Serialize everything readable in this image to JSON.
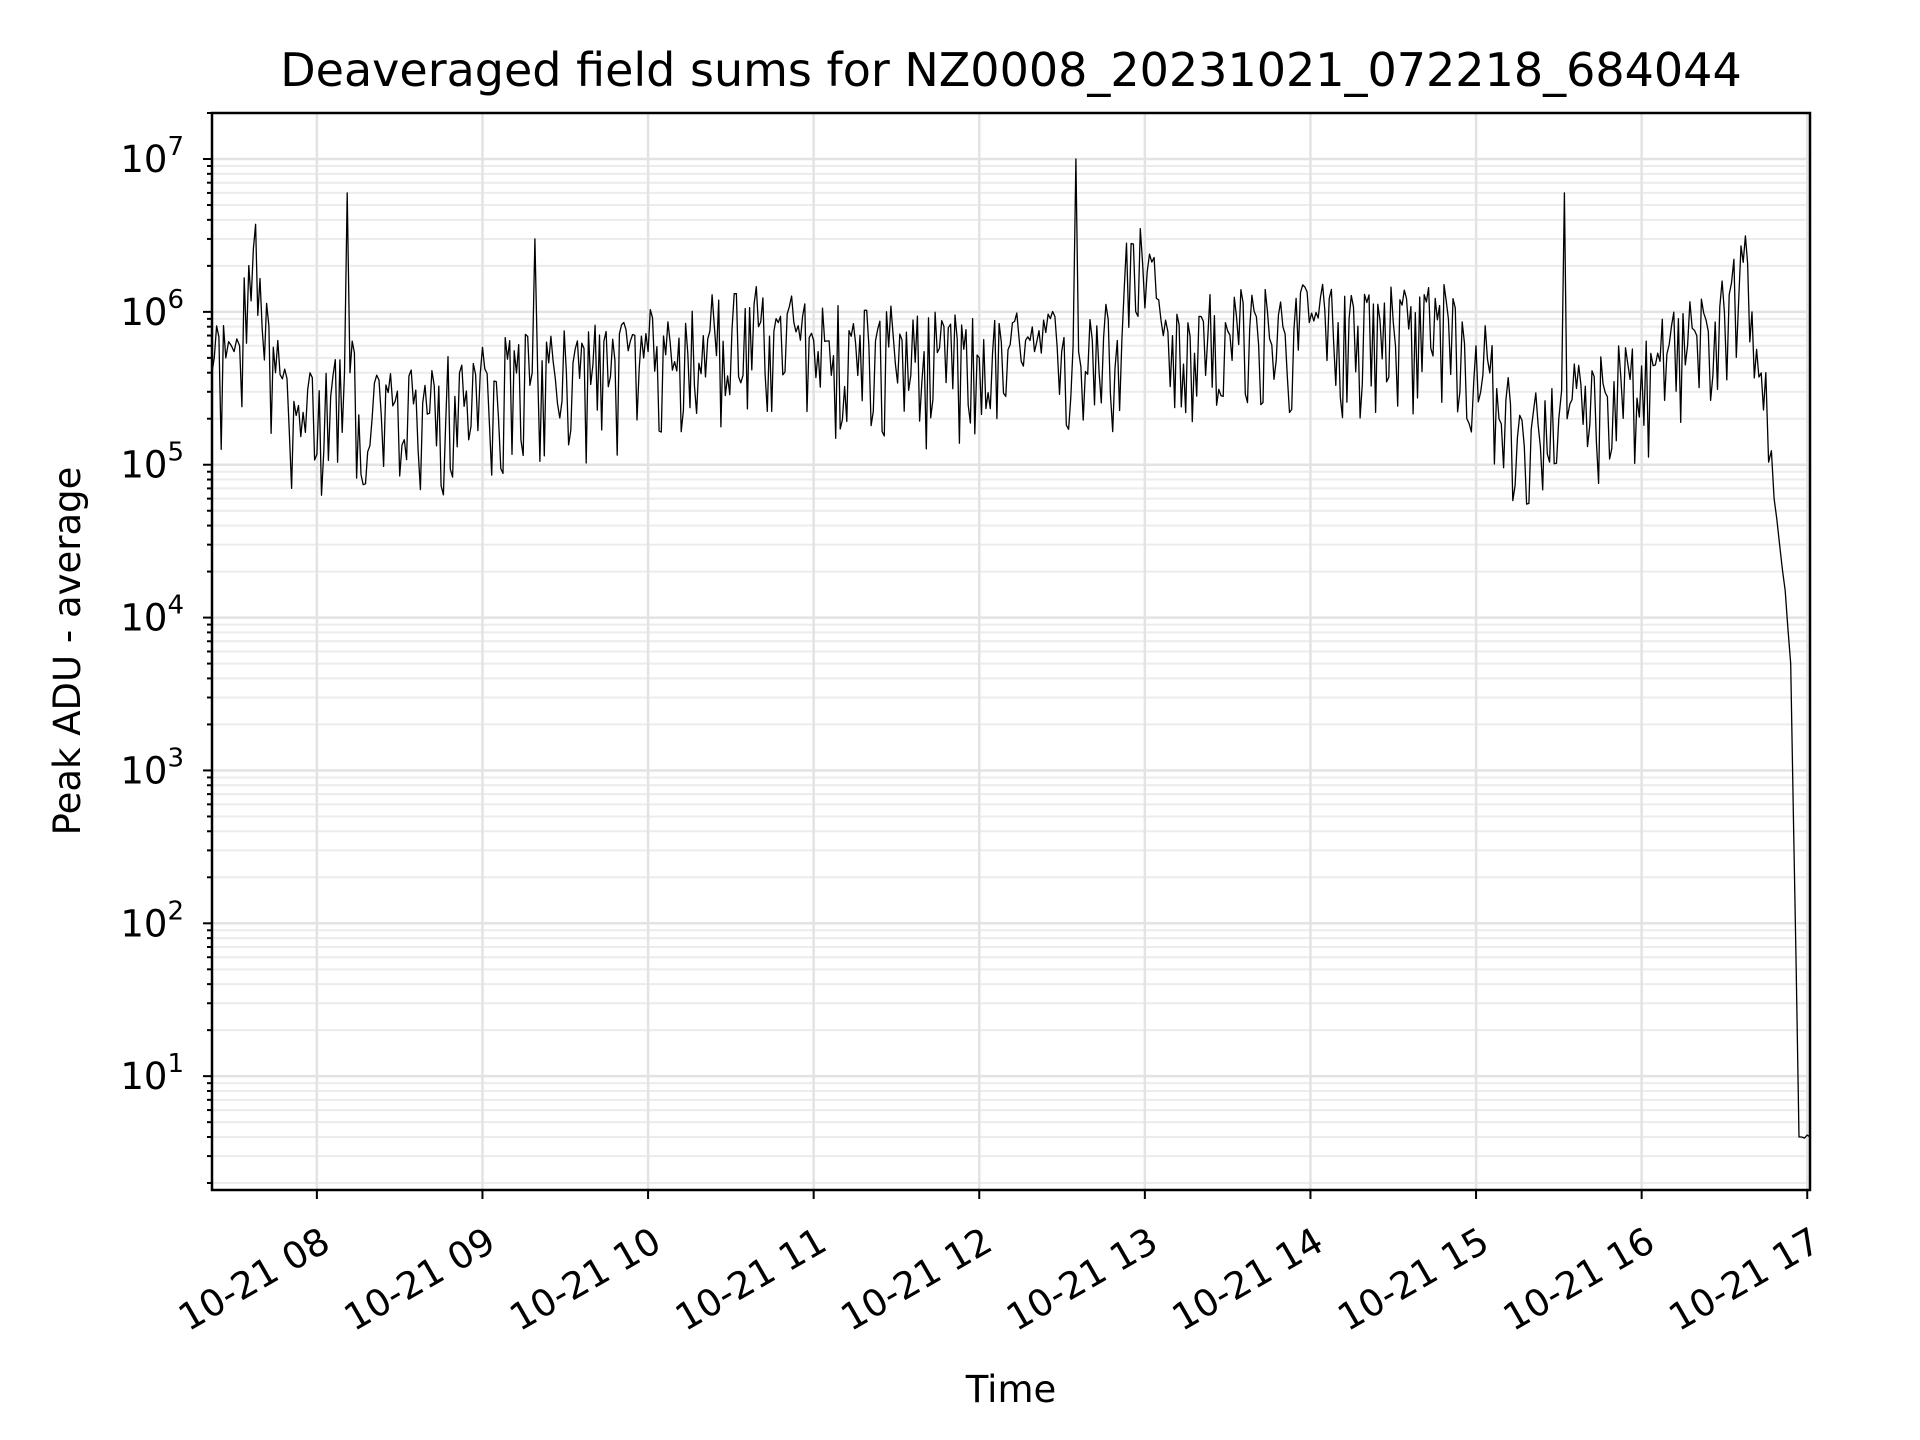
{
  "chart_data": {
    "type": "line",
    "title": "Deaveraged field sums for NZ0008_20231021_072218_684044",
    "xlabel": "Time",
    "ylabel": "Peak ADU - average",
    "yscale": "log",
    "ylim": [
      1.8,
      20000000
    ],
    "xlim": [
      "2023-10-21 07:22",
      "2023-10-21 17:01"
    ],
    "grid": true,
    "x_tick_labels": [
      "10-21 08",
      "10-21 09",
      "10-21 10",
      "10-21 11",
      "10-21 12",
      "10-21 13",
      "10-21 14",
      "10-21 15",
      "10-21 16",
      "10-21 17"
    ],
    "y_tick_labels": [
      {
        "base": "10",
        "exp": "1"
      },
      {
        "base": "10",
        "exp": "2"
      },
      {
        "base": "10",
        "exp": "3"
      },
      {
        "base": "10",
        "exp": "4"
      },
      {
        "base": "10",
        "exp": "5"
      },
      {
        "base": "10",
        "exp": "6"
      },
      {
        "base": "10",
        "exp": "7"
      }
    ],
    "series": [
      {
        "color": "#000000",
        "x": [
          "2023-10-21 07:22",
          "2023-10-21 07:27",
          "2023-10-21 07:30",
          "2023-10-21 07:32",
          "2023-10-21 07:37",
          "2023-10-21 07:45",
          "2023-10-21 07:55",
          "2023-10-21 08:05",
          "2023-10-21 08:10",
          "2023-10-21 08:11",
          "2023-10-21 08:12",
          "2023-10-21 08:20",
          "2023-10-21 08:35",
          "2023-10-21 08:50",
          "2023-10-21 09:05",
          "2023-10-21 09:18",
          "2023-10-21 09:19",
          "2023-10-21 09:20",
          "2023-10-21 09:40",
          "2023-10-21 10:00",
          "2023-10-21 10:20",
          "2023-10-21 10:40",
          "2023-10-21 11:00",
          "2023-10-21 11:20",
          "2023-10-21 11:40",
          "2023-10-21 12:00",
          "2023-10-21 12:20",
          "2023-10-21 12:34",
          "2023-10-21 12:35",
          "2023-10-21 12:36",
          "2023-10-21 12:50",
          "2023-10-21 12:55",
          "2023-10-21 13:10",
          "2023-10-21 13:30",
          "2023-10-21 13:50",
          "2023-10-21 14:10",
          "2023-10-21 14:30",
          "2023-10-21 14:50",
          "2023-10-21 15:00",
          "2023-10-21 15:15",
          "2023-10-21 15:30",
          "2023-10-21 15:32",
          "2023-10-21 15:33",
          "2023-10-21 15:34",
          "2023-10-21 15:50",
          "2023-10-21 16:05",
          "2023-10-21 16:20",
          "2023-10-21 16:30",
          "2023-10-21 16:36",
          "2023-10-21 16:40",
          "2023-10-21 16:45",
          "2023-10-21 16:48",
          "2023-10-21 16:50",
          "2023-10-21 16:52",
          "2023-10-21 16:54",
          "2023-10-21 16:55",
          "2023-10-21 16:56",
          "2023-10-21 16:57",
          "2023-10-21 16:58",
          "2023-10-21 17:01"
        ],
        "y": [
          400000,
          500000,
          550000,
          600000,
          2600000,
          400000,
          220000,
          280000,
          400000,
          6000000,
          400000,
          200000,
          250000,
          280000,
          350000,
          400000,
          3000000,
          400000,
          450000,
          550000,
          700000,
          800000,
          650000,
          600000,
          550000,
          500000,
          550000,
          600000,
          10000000,
          550000,
          650000,
          2800000,
          700000,
          750000,
          800000,
          850000,
          850000,
          900000,
          600000,
          150000,
          200000,
          6000000,
          200000,
          250000,
          350000,
          450000,
          700000,
          1000000,
          2700000,
          1000000,
          400000,
          60000,
          30000,
          15000,
          5000,
          500,
          50,
          4,
          4,
          4
        ]
      }
    ]
  }
}
